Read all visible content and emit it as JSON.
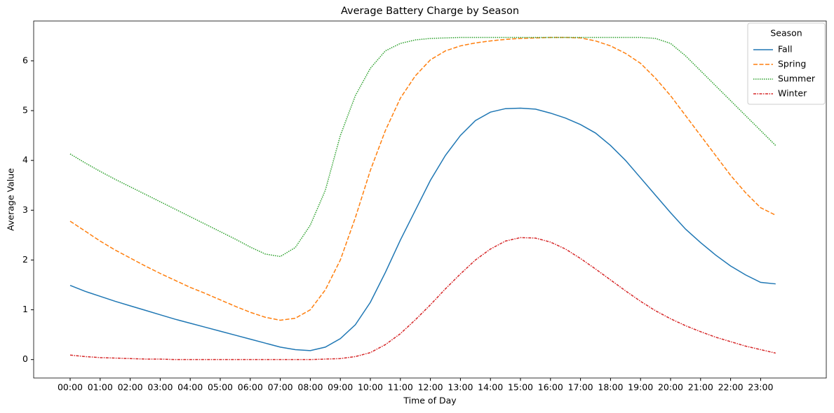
{
  "chart_data": {
    "type": "line",
    "title": "Average Battery Charge by Season",
    "xlabel": "Time of Day",
    "ylabel": "Average Value",
    "categories": [
      "00:00",
      null,
      "01:00",
      null,
      "02:00",
      null,
      "03:00",
      null,
      "04:00",
      null,
      "05:00",
      null,
      "06:00",
      null,
      "07:00",
      null,
      "08:00",
      null,
      "09:00",
      null,
      "10:00",
      null,
      "11:00",
      null,
      "12:00",
      null,
      "13:00",
      null,
      "14:00",
      null,
      "15:00",
      null,
      "16:00",
      null,
      "17:00",
      null,
      "18:00",
      null,
      "19:00",
      null,
      "20:00",
      null,
      "21:00",
      null,
      "22:00",
      null,
      "23:00",
      null
    ],
    "series": [
      {
        "name": "Fall",
        "color": "#1f77b4",
        "linestyle": "solid",
        "values": [
          1.49,
          1.37,
          1.27,
          1.17,
          1.08,
          0.99,
          0.9,
          0.81,
          0.73,
          0.65,
          0.57,
          0.49,
          0.41,
          0.33,
          0.25,
          0.2,
          0.18,
          0.25,
          0.42,
          0.7,
          1.15,
          1.75,
          2.4,
          3.0,
          3.6,
          4.1,
          4.5,
          4.8,
          4.97,
          5.04,
          5.05,
          5.03,
          4.95,
          4.85,
          4.72,
          4.55,
          4.3,
          4.0,
          3.65,
          3.3,
          2.95,
          2.62,
          2.35,
          2.1,
          1.88,
          1.7,
          1.55,
          1.52
        ]
      },
      {
        "name": "Spring",
        "color": "#ff7f0e",
        "linestyle": "dashed",
        "values": [
          2.78,
          2.58,
          2.38,
          2.2,
          2.04,
          1.88,
          1.73,
          1.59,
          1.45,
          1.33,
          1.2,
          1.07,
          0.95,
          0.85,
          0.79,
          0.83,
          1.0,
          1.4,
          2.0,
          2.85,
          3.8,
          4.6,
          5.25,
          5.7,
          6.02,
          6.2,
          6.3,
          6.36,
          6.4,
          6.43,
          6.45,
          6.46,
          6.47,
          6.47,
          6.46,
          6.4,
          6.3,
          6.15,
          5.95,
          5.65,
          5.3,
          4.9,
          4.5,
          4.1,
          3.7,
          3.35,
          3.05,
          2.9
        ]
      },
      {
        "name": "Summer",
        "color": "#2ca02c",
        "linestyle": "dotted",
        "values": [
          4.13,
          3.95,
          3.78,
          3.62,
          3.47,
          3.32,
          3.17,
          3.02,
          2.87,
          2.72,
          2.57,
          2.42,
          2.26,
          2.12,
          2.07,
          2.25,
          2.7,
          3.4,
          4.5,
          5.3,
          5.85,
          6.2,
          6.35,
          6.42,
          6.45,
          6.46,
          6.47,
          6.47,
          6.47,
          6.47,
          6.47,
          6.47,
          6.47,
          6.47,
          6.47,
          6.47,
          6.47,
          6.47,
          6.47,
          6.45,
          6.35,
          6.1,
          5.8,
          5.5,
          5.2,
          4.9,
          4.6,
          4.3
        ]
      },
      {
        "name": "Winter",
        "color": "#d62728",
        "linestyle": "dashdot",
        "values": [
          0.09,
          0.06,
          0.04,
          0.03,
          0.02,
          0.01,
          0.01,
          0,
          0,
          0,
          0,
          0,
          0,
          0,
          0,
          0,
          0,
          0.01,
          0.02,
          0.06,
          0.14,
          0.3,
          0.52,
          0.8,
          1.1,
          1.42,
          1.72,
          2.0,
          2.22,
          2.38,
          2.45,
          2.44,
          2.36,
          2.22,
          2.03,
          1.82,
          1.6,
          1.38,
          1.17,
          0.98,
          0.82,
          0.68,
          0.56,
          0.45,
          0.36,
          0.27,
          0.2,
          0.13
        ]
      }
    ],
    "ylim": [
      -0.37,
      6.8
    ],
    "yticks": [
      0,
      1,
      2,
      3,
      4,
      5,
      6
    ],
    "grid": false,
    "legend_title": "Season",
    "legend_loc": "upper right"
  }
}
